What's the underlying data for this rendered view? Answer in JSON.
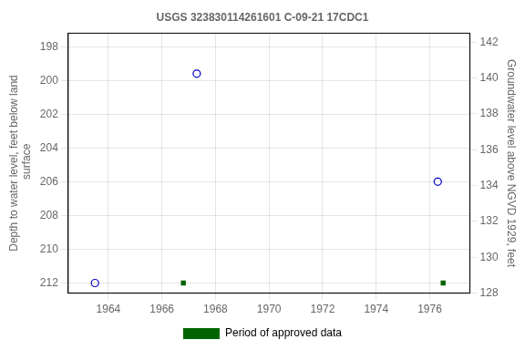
{
  "chart_data": {
    "type": "scatter",
    "title": "USGS 323830114261601 C-09-21 17CDC1",
    "ylabel": "Depth to water level, feet below land\n surface",
    "y2label": "Groundwater level above NGVD 1929, feet",
    "series": [
      {
        "x": [
          1963.5,
          1967.3,
          1976.3
        ],
        "values": [
          212.0,
          199.6,
          206.0
        ],
        "color": "#0000cc",
        "marker": "open_circle"
      },
      {
        "name": "Period of approved data",
        "x": [
          1966.8,
          1976.5
        ],
        "values": [
          212.0,
          212.0
        ],
        "color": "#006400",
        "marker": "square"
      }
    ],
    "xlim": [
      1962.5,
      1977.5
    ],
    "xticks": [
      1964,
      1966,
      1968,
      1970,
      1972,
      1974,
      1976
    ],
    "ylim": [
      212.6,
      197.2
    ],
    "yticks": [
      198,
      200,
      202,
      204,
      206,
      208,
      210,
      212
    ],
    "y2lim": [
      128.0,
      142.5
    ],
    "y2ticks": [
      128,
      130,
      132,
      134,
      136,
      138,
      140,
      142
    ],
    "grid": true,
    "legend": "bottom"
  }
}
